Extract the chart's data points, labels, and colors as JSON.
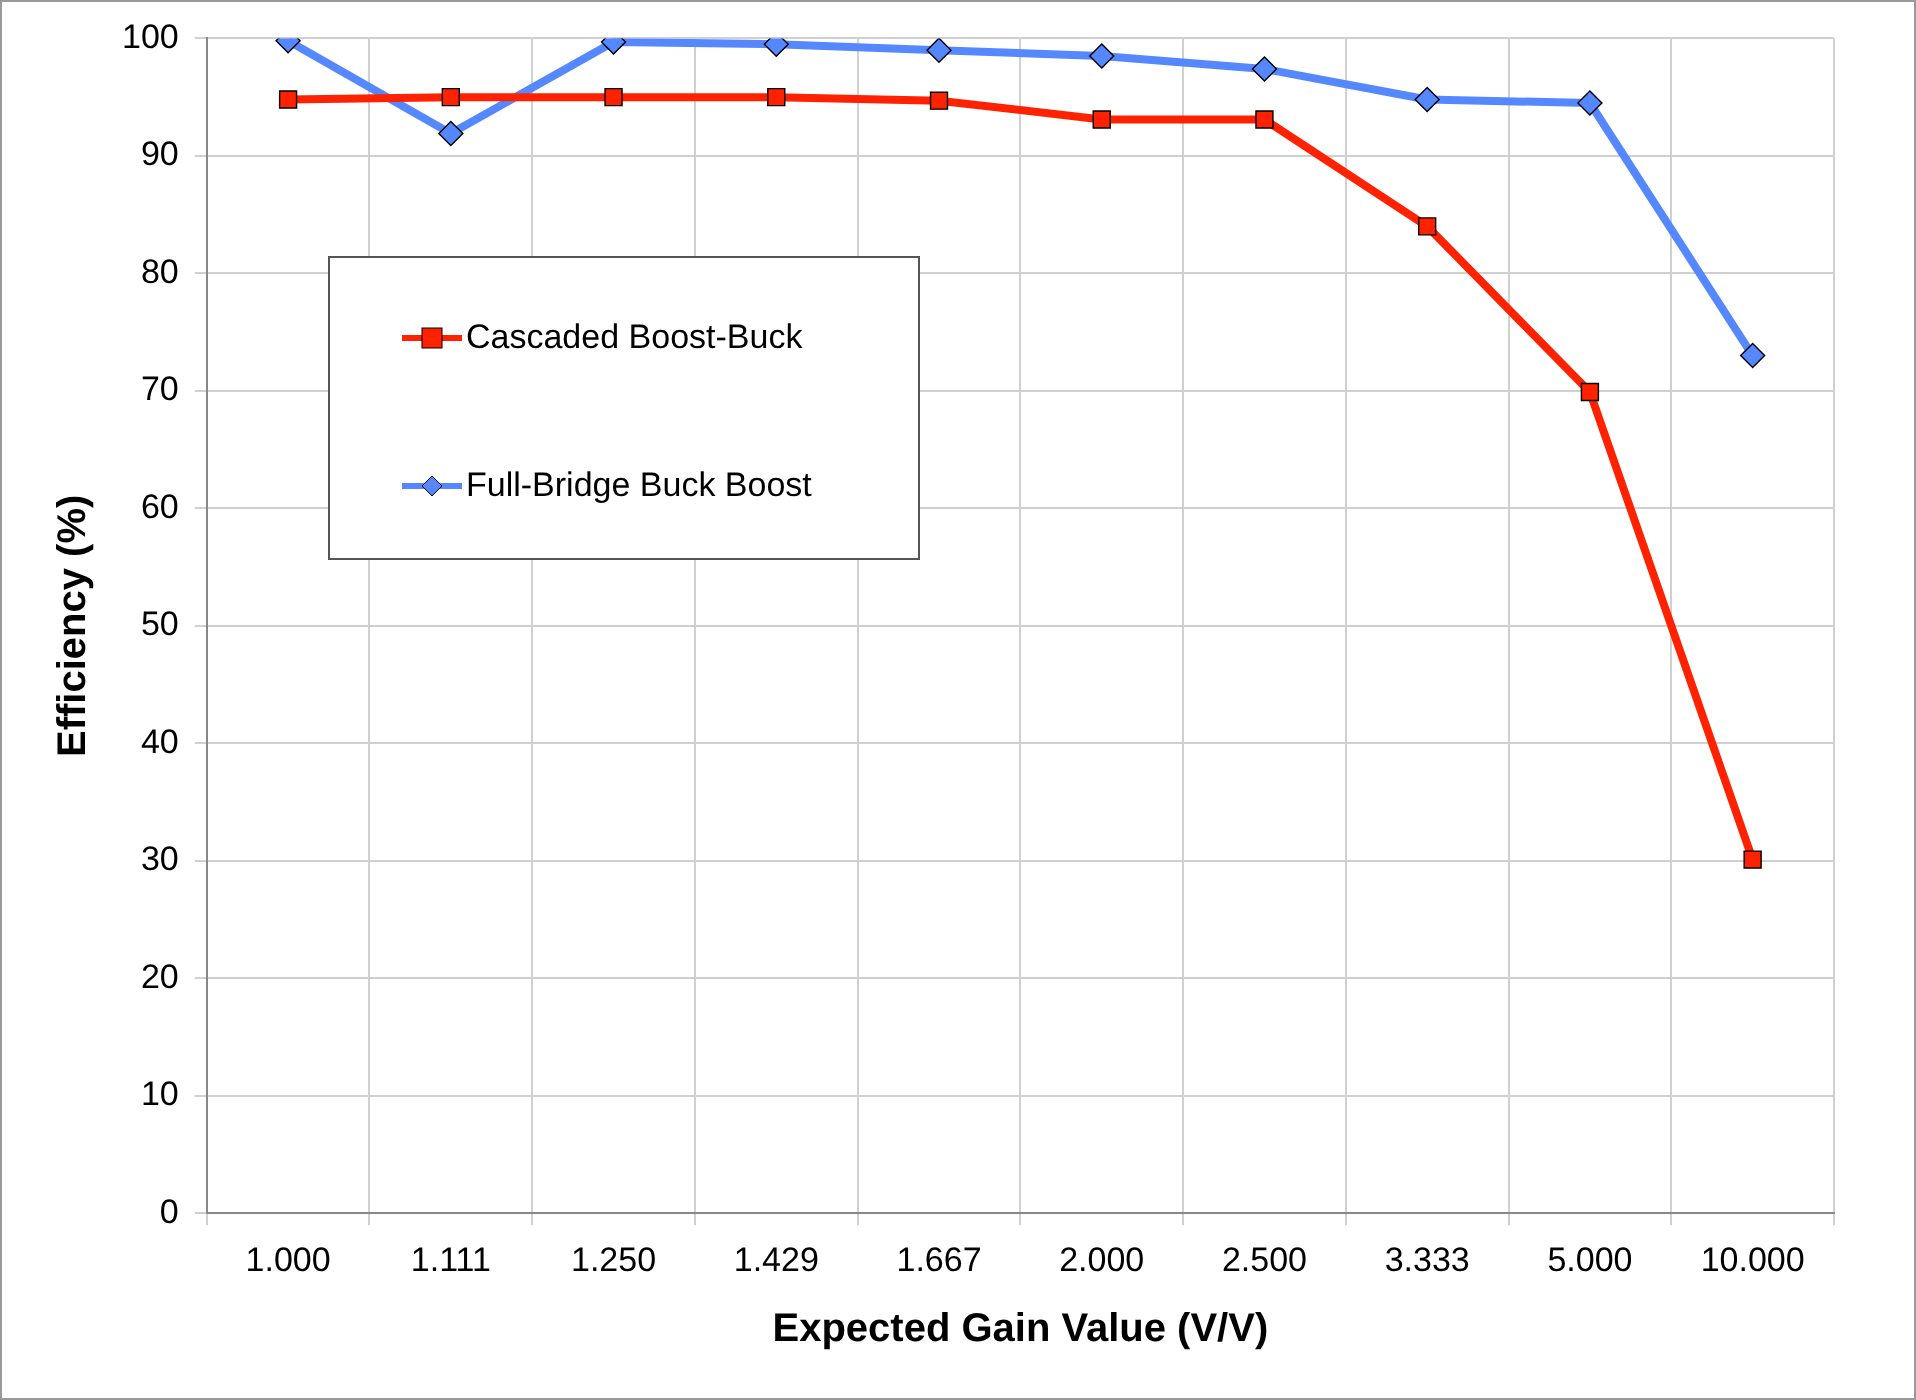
{
  "chart_data": {
    "type": "line",
    "xlabel": "Expected Gain Value (V/V)",
    "ylabel": "Efficiency (%)",
    "categories": [
      "1.000",
      "1.111",
      "1.250",
      "1.429",
      "1.667",
      "2.000",
      "2.500",
      "3.333",
      "5.000",
      "10.000"
    ],
    "series": [
      {
        "name": "Cascaded Boost-Buck",
        "color": "#ff2200",
        "marker": "square",
        "values": [
          94.8,
          95.0,
          95.0,
          95.0,
          94.7,
          93.1,
          93.1,
          84.0,
          69.9,
          30.1
        ]
      },
      {
        "name": "Full-Bridge Buck Boost",
        "color": "#5588ff",
        "marker": "diamond",
        "values": [
          99.8,
          91.9,
          99.7,
          99.5,
          99.0,
          98.5,
          97.4,
          94.8,
          94.5,
          73.0
        ]
      }
    ],
    "ylim": [
      0,
      100
    ],
    "yticks": [
      0,
      10,
      20,
      30,
      40,
      50,
      60,
      70,
      80,
      90,
      100
    ],
    "grid": true,
    "legend": "top left"
  }
}
